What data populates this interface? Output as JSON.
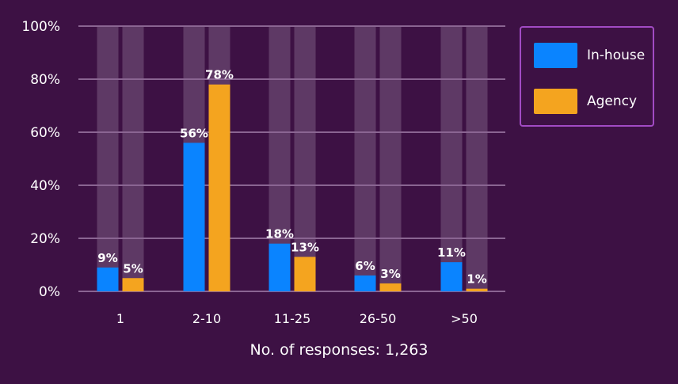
{
  "colors": {
    "background": "#3d1144",
    "grid": "#8a6592",
    "column_shade": "#5e3965",
    "legend_border": "#a24bc4"
  },
  "chart_data": {
    "type": "bar",
    "title": "",
    "xlabel": "",
    "ylabel": "",
    "categories": [
      "1",
      "2-10",
      "11-25",
      "26-50",
      ">50"
    ],
    "series": [
      {
        "name": "In-house",
        "color": "#0a84ff",
        "values": [
          9,
          56,
          18,
          6,
          11
        ]
      },
      {
        "name": "Agency",
        "color": "#f4a41f",
        "values": [
          5,
          78,
          13,
          3,
          1
        ]
      }
    ],
    "ylim": [
      0,
      100
    ],
    "yticks": [
      0,
      20,
      40,
      60,
      80,
      100
    ],
    "ytick_labels": [
      "0%",
      "20%",
      "40%",
      "60%",
      "80%",
      "100%"
    ],
    "value_suffix": "%",
    "grid": true,
    "legend_position": "top-right",
    "footnote": "No. of responses: 1,263"
  }
}
